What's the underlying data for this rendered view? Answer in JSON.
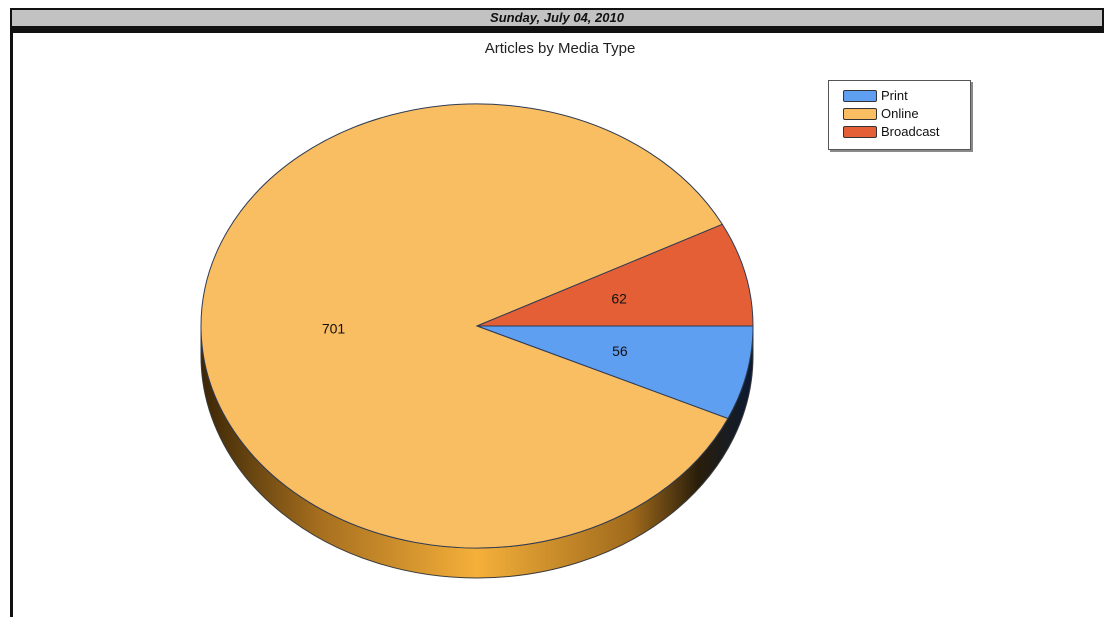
{
  "header": {
    "date": "Sunday, July 04, 2010"
  },
  "chart_data": {
    "type": "pie",
    "title": "Articles by Media Type",
    "slices": [
      {
        "label": "Print",
        "value": 56,
        "color": "#5f9ff2"
      },
      {
        "label": "Online",
        "value": 701,
        "color": "#f9bd62"
      },
      {
        "label": "Broadcast",
        "value": 62,
        "color": "#e45f36"
      }
    ],
    "legend_position": "top-right",
    "style": "3d"
  }
}
